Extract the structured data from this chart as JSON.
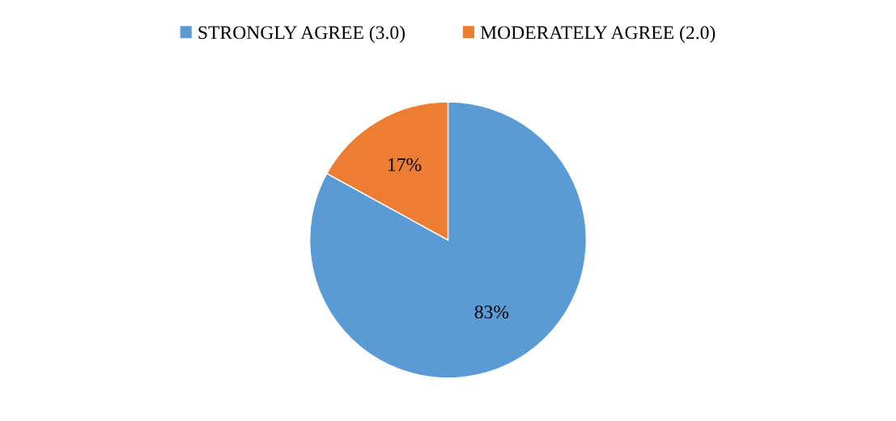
{
  "chart_data": {
    "type": "pie",
    "categories": [
      "STRONGLY AGREE (3.0)",
      "MODERATELY AGREE (2.0)"
    ],
    "values": [
      83,
      17
    ],
    "colors": [
      "#5b9bd5",
      "#ed7d31"
    ],
    "value_labels": [
      "83%",
      "17%"
    ],
    "legend": "top"
  }
}
